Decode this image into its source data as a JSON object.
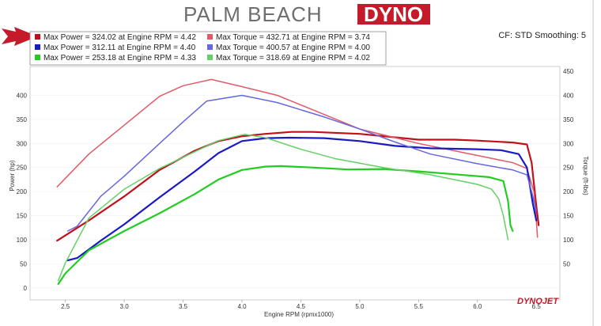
{
  "header": {
    "logo_light": "PALM BEACH",
    "logo_dark": "DYNO",
    "cf_text": "CF: STD Smoothing: 5",
    "brand": "DYNOJET"
  },
  "colors": {
    "red": "#c0101c",
    "light_red": "#e05a68",
    "blue": "#1a1ac4",
    "light_blue": "#6666dd",
    "green": "#22cc22",
    "light_green": "#66d066",
    "logo_box": "#c41a2a"
  },
  "chart_data": {
    "type": "line",
    "title": "",
    "xlabel": "Engine RPM (rpmx1000)",
    "ylabel_left": "Power (hp)",
    "ylabel_right": "Torque (ft-lbs)",
    "xlim": [
      2.2,
      6.7
    ],
    "ylim": [
      -25,
      460
    ],
    "x_ticks": [
      "2.5",
      "3.0",
      "3.5",
      "4.0",
      "4.5",
      "5.0",
      "5.5",
      "6.0",
      "6.5"
    ],
    "y_left_ticks": [
      "0",
      "50",
      "100",
      "150",
      "200",
      "250",
      "300",
      "350",
      "400"
    ],
    "y_right_ticks": [
      "50",
      "100",
      "150",
      "200",
      "250",
      "300",
      "350",
      "400",
      "450"
    ],
    "legend": [
      [
        "Max Power = 324.02 at Engine RPM = 4.42",
        "Max Torque = 432.71 at Engine RPM = 3.74"
      ],
      [
        "Max Power = 312.11 at Engine RPM = 4.40",
        "Max Torque = 400.57 at Engine RPM = 4.00"
      ],
      [
        "Max Power = 253.18 at Engine RPM = 4.33",
        "Max Torque = 318.69 at Engine RPM = 4.02"
      ]
    ],
    "series": [
      {
        "name": "Max Power = 324.02 at Engine RPM = 4.42",
        "color": "#c0101c",
        "width": 2.2,
        "points": [
          [
            2.43,
            98
          ],
          [
            2.7,
            140
          ],
          [
            3.0,
            190
          ],
          [
            3.3,
            245
          ],
          [
            3.6,
            285
          ],
          [
            3.8,
            305
          ],
          [
            4.0,
            315
          ],
          [
            4.2,
            320
          ],
          [
            4.42,
            324
          ],
          [
            4.6,
            324
          ],
          [
            5.0,
            320
          ],
          [
            5.5,
            308
          ],
          [
            5.8,
            308
          ],
          [
            6.0,
            306
          ],
          [
            6.3,
            302
          ],
          [
            6.42,
            298
          ],
          [
            6.46,
            260
          ],
          [
            6.5,
            170
          ],
          [
            6.52,
            130
          ]
        ]
      },
      {
        "name": "Max Torque = 432.71 at Engine RPM = 3.74",
        "color": "#e05a68",
        "width": 1.5,
        "points": [
          [
            2.43,
            210
          ],
          [
            2.7,
            278
          ],
          [
            3.0,
            338
          ],
          [
            3.3,
            398
          ],
          [
            3.5,
            420
          ],
          [
            3.74,
            433
          ],
          [
            4.0,
            418
          ],
          [
            4.3,
            400
          ],
          [
            4.6,
            370
          ],
          [
            5.0,
            330
          ],
          [
            5.5,
            300
          ],
          [
            6.0,
            275
          ],
          [
            6.3,
            260
          ],
          [
            6.42,
            248
          ],
          [
            6.48,
            200
          ],
          [
            6.5,
            140
          ],
          [
            6.51,
            105
          ]
        ]
      },
      {
        "name": "Max Power = 312.11 at Engine RPM = 4.40",
        "color": "#1a1ac4",
        "width": 2.2,
        "points": [
          [
            2.52,
            57
          ],
          [
            2.6,
            62
          ],
          [
            2.8,
            98
          ],
          [
            3.0,
            132
          ],
          [
            3.3,
            188
          ],
          [
            3.6,
            242
          ],
          [
            3.8,
            280
          ],
          [
            4.0,
            305
          ],
          [
            4.2,
            311
          ],
          [
            4.4,
            312
          ],
          [
            4.7,
            311
          ],
          [
            5.0,
            305
          ],
          [
            5.3,
            295
          ],
          [
            5.6,
            290
          ],
          [
            6.0,
            288
          ],
          [
            6.2,
            286
          ],
          [
            6.35,
            278
          ],
          [
            6.42,
            250
          ],
          [
            6.47,
            175
          ],
          [
            6.5,
            140
          ]
        ]
      },
      {
        "name": "Max Torque = 400.57 at Engine RPM = 4.00",
        "color": "#6666dd",
        "width": 1.5,
        "points": [
          [
            2.52,
            118
          ],
          [
            2.6,
            128
          ],
          [
            2.8,
            190
          ],
          [
            3.0,
            232
          ],
          [
            3.3,
            300
          ],
          [
            3.5,
            345
          ],
          [
            3.7,
            388
          ],
          [
            4.0,
            400
          ],
          [
            4.3,
            385
          ],
          [
            4.7,
            355
          ],
          [
            5.0,
            330
          ],
          [
            5.3,
            303
          ],
          [
            5.6,
            278
          ],
          [
            6.0,
            258
          ],
          [
            6.3,
            245
          ],
          [
            6.42,
            235
          ],
          [
            6.46,
            200
          ],
          [
            6.5,
            160
          ]
        ]
      },
      {
        "name": "Max Power = 253.18 at Engine RPM = 4.33",
        "color": "#22cc22",
        "width": 2.2,
        "points": [
          [
            2.44,
            8
          ],
          [
            2.5,
            30
          ],
          [
            2.7,
            78
          ],
          [
            3.0,
            118
          ],
          [
            3.3,
            155
          ],
          [
            3.6,
            195
          ],
          [
            3.8,
            225
          ],
          [
            4.0,
            245
          ],
          [
            4.2,
            252
          ],
          [
            4.33,
            253
          ],
          [
            4.6,
            250
          ],
          [
            4.9,
            246
          ],
          [
            5.2,
            247
          ],
          [
            5.5,
            242
          ],
          [
            5.8,
            236
          ],
          [
            6.1,
            230
          ],
          [
            6.22,
            222
          ],
          [
            6.26,
            180
          ],
          [
            6.28,
            130
          ],
          [
            6.3,
            118
          ]
        ]
      },
      {
        "name": "Max Torque = 318.69 at Engine RPM = 4.02",
        "color": "#66d066",
        "width": 1.5,
        "points": [
          [
            2.44,
            15
          ],
          [
            2.5,
            52
          ],
          [
            2.7,
            145
          ],
          [
            3.0,
            205
          ],
          [
            3.3,
            248
          ],
          [
            3.6,
            283
          ],
          [
            3.8,
            306
          ],
          [
            4.02,
            319
          ],
          [
            4.2,
            312
          ],
          [
            4.5,
            288
          ],
          [
            4.8,
            268
          ],
          [
            5.2,
            250
          ],
          [
            5.6,
            235
          ],
          [
            6.0,
            215
          ],
          [
            6.12,
            205
          ],
          [
            6.18,
            185
          ],
          [
            6.22,
            150
          ],
          [
            6.26,
            100
          ]
        ]
      }
    ]
  }
}
